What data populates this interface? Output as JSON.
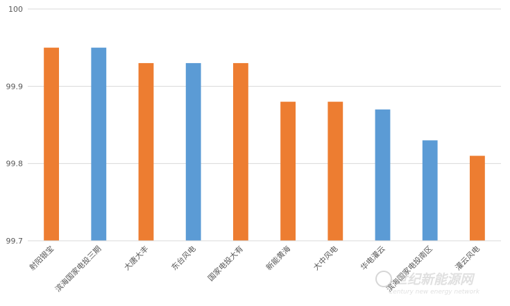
{
  "chart_data": {
    "type": "bar",
    "title": "",
    "xlabel": "",
    "ylabel": "",
    "ylim": [
      99.7,
      100
    ],
    "yticks": [
      "99.7",
      "99.8",
      "99.9",
      "100"
    ],
    "grid": true,
    "legend": "none",
    "categories": [
      "射阳银宝",
      "滨海国家电投三期",
      "大唐大丰",
      "东台风电",
      "国家电投大有",
      "新能黄海",
      "大中风电",
      "华电灌云",
      "滨海国家电投南区",
      "灌云风电"
    ],
    "values": [
      99.95,
      99.95,
      99.93,
      99.93,
      99.93,
      99.88,
      99.88,
      99.87,
      99.83,
      99.81
    ],
    "colors": [
      "#ED7D31",
      "#5B9BD5",
      "#ED7D31",
      "#5B9BD5",
      "#ED7D31",
      "#ED7D31",
      "#ED7D31",
      "#5B9BD5",
      "#5B9BD5",
      "#ED7D31"
    ]
  },
  "watermark": {
    "cn": "世纪新能源网",
    "en": "Century new energy network"
  }
}
